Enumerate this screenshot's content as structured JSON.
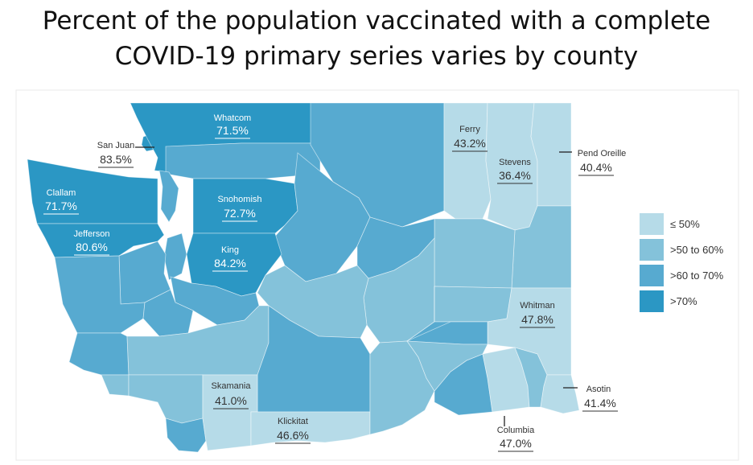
{
  "title": {
    "line1": "Percent of the population vaccinated with a complete",
    "line2": "COVID-19 primary series varies by county"
  },
  "colors": {
    "le50": "#b6dbe8",
    "50to60": "#84c2da",
    "60to70": "#57aad0",
    "gt70": "#2b97c4",
    "label_dark": "#333333",
    "label_light": "#ffffff"
  },
  "legend": [
    {
      "label": "≤ 50%",
      "class": "le50"
    },
    {
      "label": ">50 to 60%",
      "class": "50to60"
    },
    {
      "label": ">60 to 70%",
      "class": "60to70"
    },
    {
      "label": ">70%",
      "class": "gt70"
    }
  ],
  "labels": {
    "whatcom": {
      "name": "Whatcom",
      "pct": "71.5%"
    },
    "san_juan": {
      "name": "San Juan",
      "pct": "83.5%"
    },
    "clallam": {
      "name": "Clallam",
      "pct": "71.7%"
    },
    "jefferson": {
      "name": "Jefferson",
      "pct": "80.6%"
    },
    "snohomish": {
      "name": "Snohomish",
      "pct": "72.7%"
    },
    "king": {
      "name": "King",
      "pct": "84.2%"
    },
    "ferry": {
      "name": "Ferry",
      "pct": "43.2%"
    },
    "stevens": {
      "name": "Stevens",
      "pct": "36.4%"
    },
    "pend_oreille": {
      "name": "Pend Oreille",
      "pct": "40.4%"
    },
    "whitman": {
      "name": "Whitman",
      "pct": "47.8%"
    },
    "asotin": {
      "name": "Asotin",
      "pct": "41.4%"
    },
    "columbia": {
      "name": "Columbia",
      "pct": "47.0%"
    },
    "skamania": {
      "name": "Skamania",
      "pct": "41.0%"
    },
    "klickitat": {
      "name": "Klickitat",
      "pct": "46.6%"
    }
  }
}
